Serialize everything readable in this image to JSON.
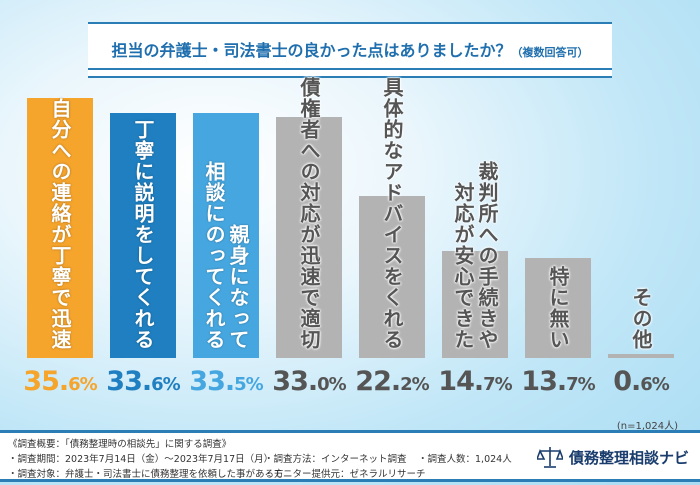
{
  "title": {
    "main": "担当の弁護士・司法書士の良かった点はありましたか？",
    "sub": "（複数回答可）"
  },
  "chart_data": {
    "type": "bar",
    "categories": [
      [
        "自分への連絡が丁寧で迅速"
      ],
      [
        "丁寧に説明をしてくれる"
      ],
      [
        "親身になって",
        "相談にのってくれる"
      ],
      [
        "債権者への対応が迅速で適切"
      ],
      [
        "具体的なアドバイスをくれる"
      ],
      [
        "裁判所への手続きや",
        "対応が安心できた"
      ],
      [
        "特に無い"
      ],
      [
        "その他"
      ]
    ],
    "values": [
      35.6,
      33.6,
      33.5,
      33.0,
      22.2,
      14.7,
      13.7,
      0.6
    ],
    "labels": [
      [
        "35.",
        "6%"
      ],
      [
        "33.",
        "6%"
      ],
      [
        "33.",
        "5%"
      ],
      [
        "33.",
        "0%"
      ],
      [
        "22.",
        "2%"
      ],
      [
        "14.",
        "7%"
      ],
      [
        "13.",
        "7%"
      ],
      [
        "0.",
        "6%"
      ]
    ],
    "colors": [
      "#f5a42c",
      "#1f7fc0",
      "#46a7e0",
      "#b3b3b3",
      "#b3b3b3",
      "#b3b3b3",
      "#b3b3b3",
      "#b3b3b3"
    ],
    "label_colors": [
      "#f5a42c",
      "#1f7fc0",
      "#46a7e0",
      "#555555",
      "#555555",
      "#555555",
      "#555555",
      "#555555"
    ],
    "ylim": [
      0,
      36
    ]
  },
  "n_note": "(n=1,024人)",
  "footer": {
    "heading": "《調査概要：「債務整理時の相談先」に関する調査》",
    "period": "・調査期間：2023年7月14日（金）〜2023年7月17日（月）",
    "method": "・調査方法：インターネット調査",
    "count": "・調査人数：1,024人",
    "target": "・調査対象：弁護士・司法書士に債務整理を依頼した事がある方",
    "provider": "・モニター提供元：ゼネラルリサーチ",
    "logo": "債務整理相談ナビ"
  }
}
